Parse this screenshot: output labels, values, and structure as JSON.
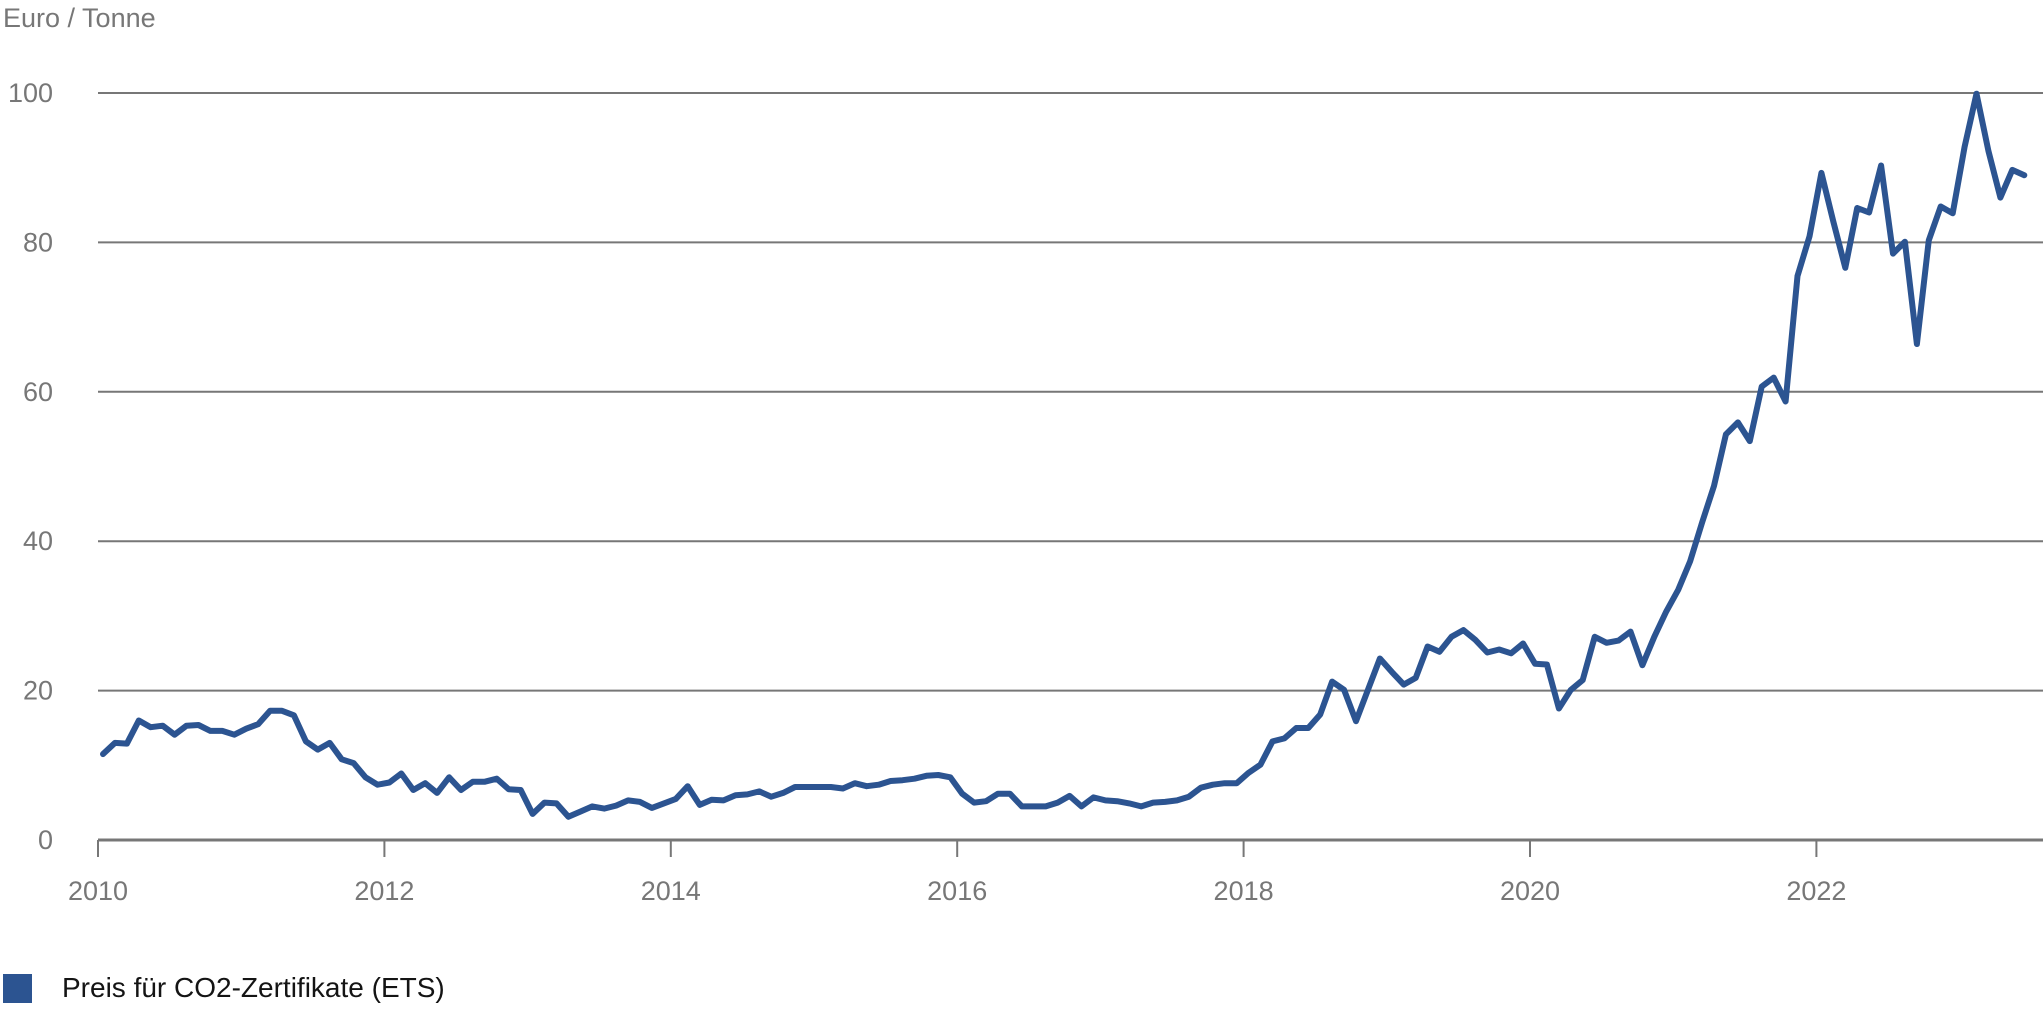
{
  "chart_data": {
    "type": "line",
    "title": "",
    "ylabel": "Euro / Tonne",
    "xlabel": "",
    "ylim": [
      0,
      100
    ],
    "yticks": [
      0,
      20,
      40,
      60,
      80,
      100
    ],
    "xticks": [
      "2010",
      "2012",
      "2014",
      "2016",
      "2018",
      "2020",
      "2022"
    ],
    "xrange": [
      "2010-01",
      "2023-06"
    ],
    "x_frequency": "monthly",
    "grid": "horizontal",
    "legend_position": "bottom-left",
    "series": [
      {
        "name": "Preis für CO2-Zertifikate (ETS)",
        "color": "#2c5491",
        "start": "2010-01",
        "values": [
          11.5,
          13.0,
          12.9,
          16.0,
          15.1,
          15.3,
          14.1,
          15.3,
          15.4,
          14.6,
          14.6,
          14.1,
          14.9,
          15.5,
          17.3,
          17.3,
          16.7,
          13.2,
          12.1,
          13.0,
          10.8,
          10.3,
          8.4,
          7.4,
          7.7,
          8.9,
          6.7,
          7.6,
          6.3,
          8.4,
          6.7,
          7.8,
          7.8,
          8.2,
          6.8,
          6.7,
          3.5,
          5.0,
          4.9,
          3.1,
          3.8,
          4.5,
          4.2,
          4.6,
          5.3,
          5.1,
          4.3,
          4.9,
          5.5,
          7.2,
          4.7,
          5.4,
          5.3,
          6.0,
          6.1,
          6.5,
          5.8,
          6.3,
          7.1,
          7.1,
          7.1,
          7.1,
          6.9,
          7.6,
          7.2,
          7.4,
          7.9,
          8.0,
          8.2,
          8.6,
          8.7,
          8.4,
          6.2,
          5.0,
          5.2,
          6.2,
          6.2,
          4.5,
          4.5,
          4.5,
          5.0,
          5.9,
          4.5,
          5.7,
          5.3,
          5.2,
          4.9,
          4.5,
          5.0,
          5.1,
          5.3,
          5.8,
          7.0,
          7.4,
          7.6,
          7.6,
          9.0,
          10.1,
          13.2,
          13.6,
          15.0,
          15.0,
          16.8,
          21.2,
          20.1,
          15.9,
          20.1,
          24.3,
          22.5,
          20.8,
          21.7,
          25.9,
          25.2,
          27.2,
          28.1,
          26.8,
          25.1,
          25.5,
          25.0,
          26.3,
          23.6,
          23.5,
          17.6,
          20.1,
          21.4,
          27.2,
          26.4,
          26.7,
          27.9,
          23.4,
          27.2,
          30.6,
          33.5,
          37.3,
          42.5,
          47.4,
          54.3,
          55.9,
          53.4,
          60.7,
          61.9,
          58.7,
          75.5,
          80.8,
          89.3,
          82.8,
          76.6,
          84.6,
          84.0,
          90.3,
          78.5,
          80.1,
          66.4,
          80.3,
          84.8,
          83.9,
          92.8,
          99.9,
          92.2,
          86.0,
          89.7,
          89.0
        ]
      }
    ]
  },
  "colors": {
    "line": "#2c5491",
    "grid": "#777777",
    "axis_text": "#777777",
    "legend_text": "#141414"
  },
  "legend": {
    "items": [
      {
        "label": "Preis für CO2-Zertifikate (ETS)",
        "color": "#2c5491"
      }
    ]
  }
}
